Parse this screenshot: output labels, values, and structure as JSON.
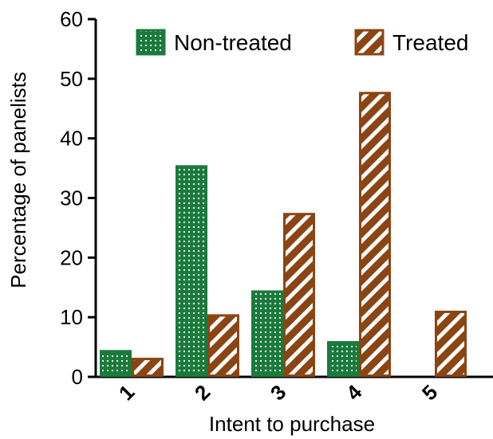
{
  "chart_data": {
    "type": "bar",
    "xlabel": "Intent to purchase",
    "ylabel": "Percentage of panelists",
    "ylim": [
      0,
      60
    ],
    "yticks": [
      "0",
      "10",
      "20",
      "30",
      "40",
      "50",
      "60"
    ],
    "categories": [
      "1",
      "2",
      "3",
      "4",
      "5"
    ],
    "series": [
      {
        "name": "Non-treated",
        "values": [
          4.3,
          35.3,
          14.3,
          5.8,
          0
        ],
        "color": "#1a7a3c",
        "pattern": "dots"
      },
      {
        "name": "Treated",
        "values": [
          3.0,
          10.3,
          27.3,
          47.6,
          10.9
        ],
        "color": "#8b4513",
        "pattern": "diagonal-stripes"
      }
    ],
    "legend_position": "top",
    "grid": false
  }
}
